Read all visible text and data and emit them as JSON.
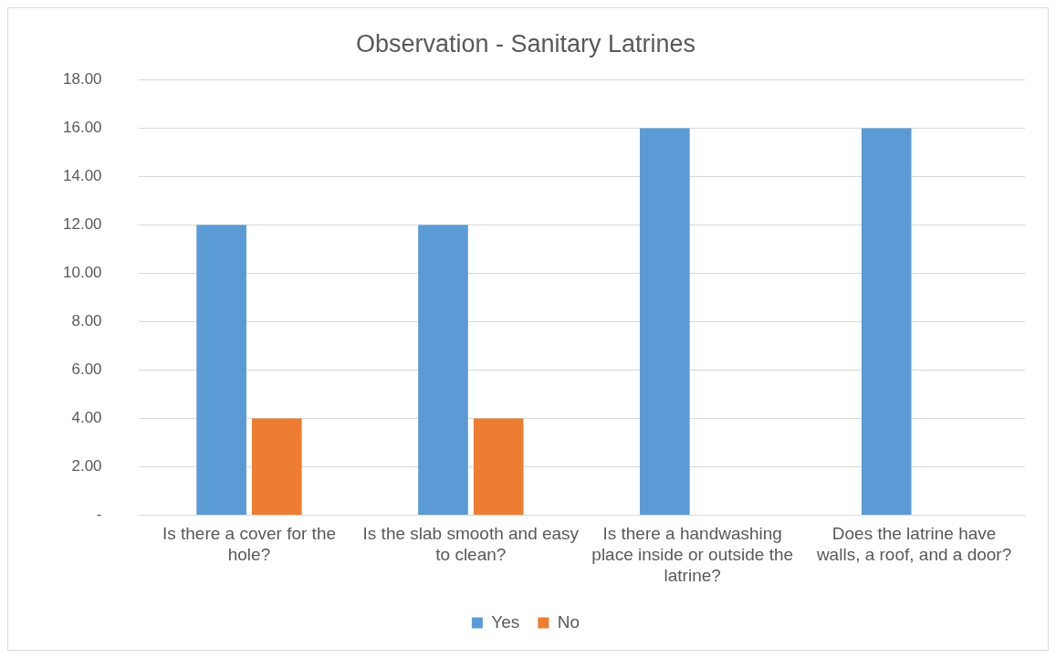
{
  "chart_data": {
    "type": "bar",
    "title": "Observation - Sanitary Latrines",
    "categories": [
      "Is there a cover for the hole?",
      "Is the slab smooth and easy to clean?",
      "Is there a handwashing place inside or outside the latrine?",
      "Does the latrine have walls, a roof, and a door?"
    ],
    "series": [
      {
        "name": "Yes",
        "color": "#5b9bd5",
        "values": [
          12,
          12,
          16,
          16
        ]
      },
      {
        "name": "No",
        "color": "#ed7d31",
        "values": [
          4,
          4,
          null,
          null
        ]
      }
    ],
    "ylim": [
      0,
      18
    ],
    "yticks": [
      {
        "value": 0,
        "label": "-"
      },
      {
        "value": 2,
        "label": "2.00"
      },
      {
        "value": 4,
        "label": "4.00"
      },
      {
        "value": 6,
        "label": "6.00"
      },
      {
        "value": 8,
        "label": "8.00"
      },
      {
        "value": 10,
        "label": "10.00"
      },
      {
        "value": 12,
        "label": "12.00"
      },
      {
        "value": 14,
        "label": "14.00"
      },
      {
        "value": 16,
        "label": "16.00"
      },
      {
        "value": 18,
        "label": "18.00"
      }
    ],
    "grid": "y",
    "legend": "bottom"
  }
}
